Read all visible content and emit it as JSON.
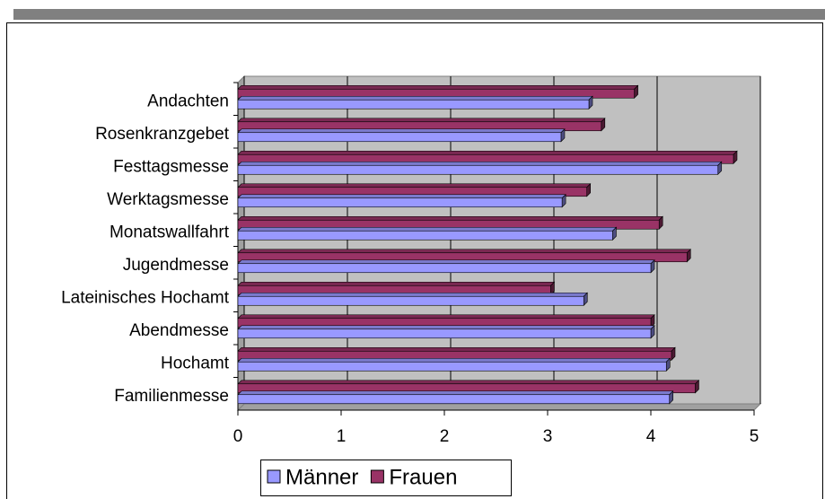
{
  "chart_data": {
    "type": "bar3d_horizontal",
    "categories": [
      "Andachten",
      "Rosenkranzgebet",
      "Festtagsmesse",
      "Werktagsmesse",
      "Monatswallfahrt",
      "Jugendmesse",
      "Lateinisches Hochamt",
      "Abendmesse",
      "Hochamt",
      "Familienmesse"
    ],
    "series": [
      {
        "name": "Männer",
        "color": "#9999ff",
        "values": [
          3.4,
          3.13,
          4.65,
          3.14,
          3.63,
          4.0,
          3.35,
          4.0,
          4.15,
          4.18
        ]
      },
      {
        "name": "Frauen",
        "color": "#993366",
        "values": [
          3.84,
          3.52,
          4.8,
          3.38,
          4.08,
          4.35,
          3.03,
          4.0,
          4.2,
          4.43
        ]
      }
    ],
    "xlim": [
      0,
      5
    ],
    "xticks": [
      0,
      1,
      2,
      3,
      4,
      5
    ],
    "grid": true,
    "legend": "bottom"
  }
}
